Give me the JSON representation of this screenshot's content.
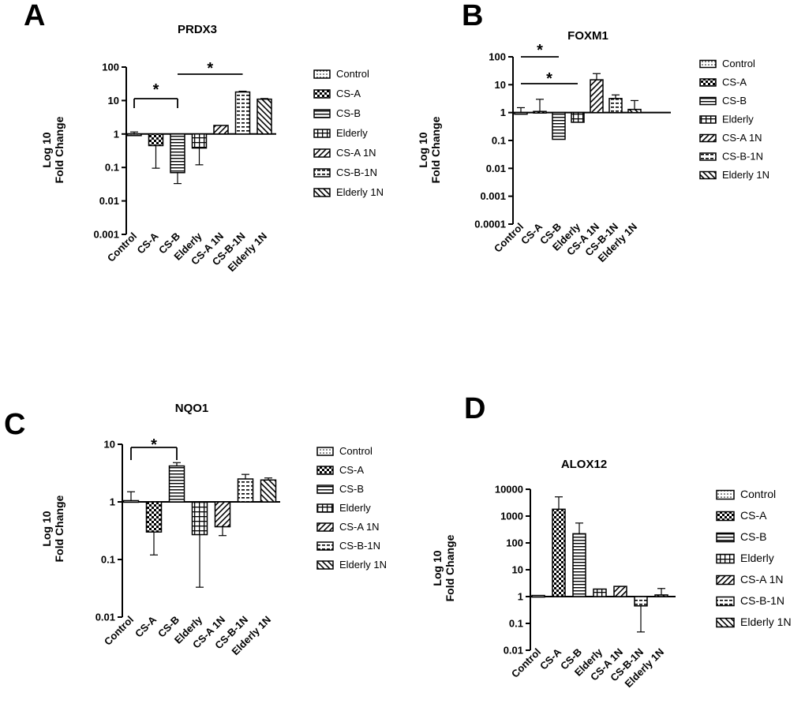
{
  "figure": {
    "legend_entries": [
      "Control",
      "CS-A",
      "CS-B",
      "Elderly",
      "CS-A 1N",
      "CS-B-1N",
      "Elderly 1N"
    ],
    "y_axis_label_line1": "Log 10",
    "y_axis_label_line2": "Fold Change",
    "significance_marker": "*"
  },
  "chart_data": [
    {
      "panel": "A",
      "type": "bar",
      "title": "PRDX3",
      "scale": "log",
      "ylabel": "Log 10 Fold Change",
      "ylim": [
        0.001,
        100
      ],
      "yticks": [
        "0.001",
        "0.01",
        "0.1",
        "1",
        "10",
        "100"
      ],
      "categories": [
        "Control",
        "CS-A",
        "CS-B",
        "Elderly",
        "CS-A 1N",
        "CS-B-1N",
        "Elderly 1N"
      ],
      "values": [
        1.0,
        0.45,
        0.07,
        0.38,
        1.8,
        18,
        11
      ],
      "error_bars": [
        1.15,
        0.095,
        0.033,
        0.12,
        null,
        19,
        11.5
      ],
      "significance": [
        {
          "from": "Control",
          "to": "CS-B",
          "label": "*"
        },
        {
          "from": "CS-B",
          "to": "CS-B-1N",
          "label": "*"
        }
      ]
    },
    {
      "panel": "B",
      "type": "bar",
      "title": "FOXM1",
      "scale": "log",
      "ylabel": "Log 10 Fold Change",
      "ylim": [
        0.0001,
        100
      ],
      "yticks": [
        "0.0001",
        "0.001",
        "0.01",
        "0.1",
        "1",
        "10",
        "100"
      ],
      "categories": [
        "Control",
        "CS-A",
        "CS-B",
        "Elderly",
        "CS-A 1N",
        "CS-B-1N",
        "Elderly 1N"
      ],
      "values": [
        1.0,
        1.1,
        0.11,
        0.45,
        15,
        3.2,
        1.3
      ],
      "error_bars": [
        1.5,
        3.0,
        null,
        null,
        25,
        4.3,
        2.7
      ],
      "significance": [
        {
          "from": "Control",
          "to": "CS-B",
          "label": "*"
        },
        {
          "from": "Control",
          "to": "Elderly",
          "label": "*"
        }
      ]
    },
    {
      "panel": "C",
      "type": "bar",
      "title": "NQO1",
      "scale": "log",
      "ylabel": "Log 10 Fold Change",
      "ylim": [
        0.01,
        10
      ],
      "yticks": [
        "0.01",
        "0.1",
        "1",
        "10"
      ],
      "categories": [
        "Control",
        "CS-A",
        "CS-B",
        "Elderly",
        "CS-A 1N",
        "CS-B-1N",
        "Elderly 1N"
      ],
      "values": [
        1.05,
        0.3,
        4.2,
        0.27,
        0.37,
        2.5,
        2.4
      ],
      "error_bars": [
        1.5,
        0.12,
        4.8,
        0.033,
        0.26,
        3.0,
        2.6
      ],
      "significance": [
        {
          "from": "Control",
          "to": "CS-B",
          "label": "*"
        }
      ]
    },
    {
      "panel": "D",
      "type": "bar",
      "title": "ALOX12",
      "scale": "log",
      "ylabel": "Log 10 Fold Change",
      "ylim": [
        0.01,
        10000
      ],
      "yticks": [
        "0.01",
        "0.1",
        "1",
        "10",
        "100",
        "1000",
        "10000"
      ],
      "categories": [
        "Control",
        "CS-A",
        "CS-B",
        "Elderly",
        "CS-A 1N",
        "CS-B-1N",
        "Elderly 1N"
      ],
      "values": [
        1.1,
        1800,
        220,
        1.9,
        2.4,
        0.45,
        1.15
      ],
      "error_bars": [
        null,
        5200,
        550,
        null,
        null,
        0.048,
        2.0
      ],
      "significance": []
    }
  ]
}
